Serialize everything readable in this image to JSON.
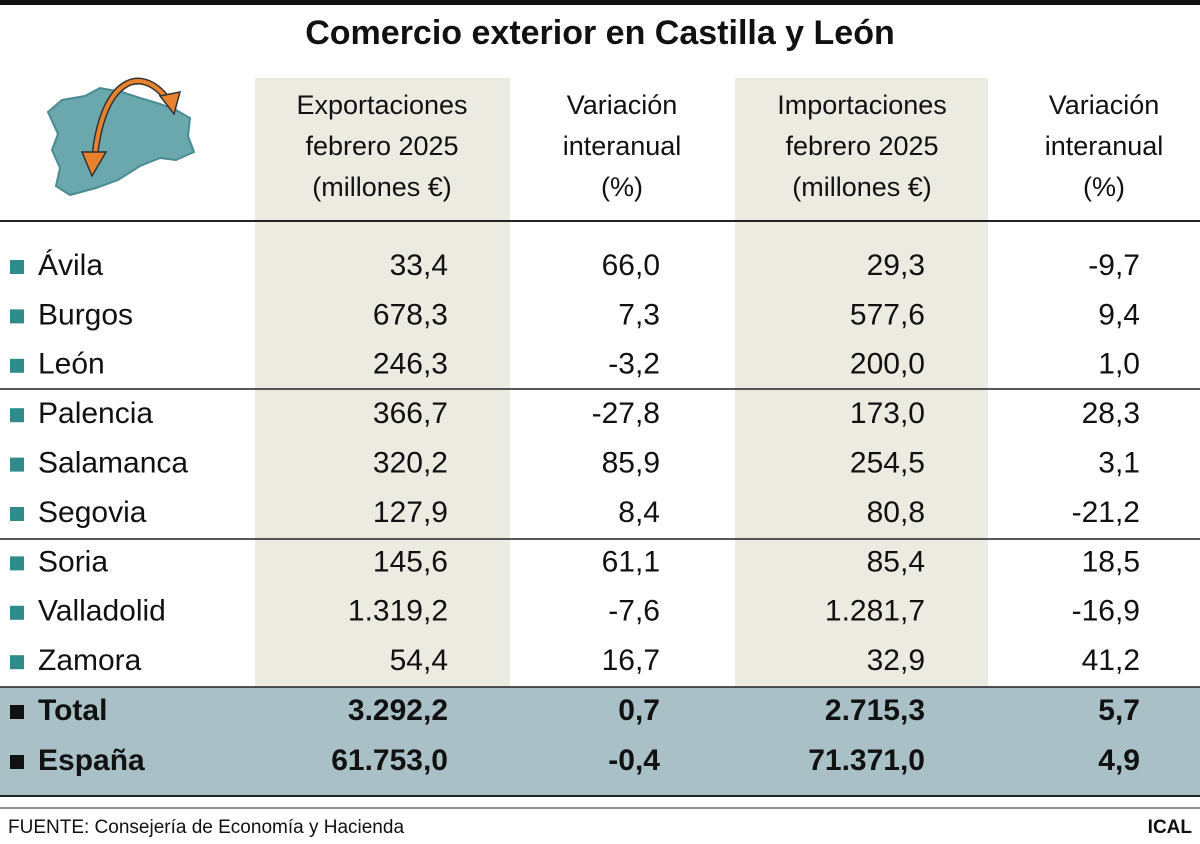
{
  "title": "Comercio exterior en Castilla y León",
  "header": [
    [
      "Exportaciones",
      "febrero 2025",
      "(millones €)"
    ],
    [
      "Variación",
      "interanual",
      "(%)"
    ],
    [
      "Importaciones",
      "febrero 2025",
      "(millones €)"
    ],
    [
      "Variación",
      "interanual",
      "(%)"
    ]
  ],
  "rows": [
    [
      "Ávila",
      "33,4",
      "66,0",
      "29,3",
      "-9,7"
    ],
    [
      "Burgos",
      "678,3",
      "7,3",
      "577,6",
      "9,4"
    ],
    [
      "León",
      "246,3",
      "-3,2",
      "200,0",
      "1,0"
    ],
    [
      "Palencia",
      "366,7",
      "-27,8",
      "173,0",
      "28,3"
    ],
    [
      "Salamanca",
      "320,2",
      "85,9",
      "254,5",
      "3,1"
    ],
    [
      "Segovia",
      "127,9",
      "8,4",
      "80,8",
      "-21,2"
    ],
    [
      "Soria",
      "145,6",
      "61,1",
      "85,4",
      "18,5"
    ],
    [
      "Valladolid",
      "1.319,2",
      "-7,6",
      "1.281,7",
      "-16,9"
    ],
    [
      "Zamora",
      "54,4",
      "16,7",
      "32,9",
      "41,2"
    ]
  ],
  "totals": [
    [
      "Total",
      "3.292,2",
      "0,7",
      "2.715,3",
      "5,7"
    ],
    [
      "España",
      "61.753,0",
      "-0,4",
      "71.371,0",
      "4,9"
    ]
  ],
  "source": "FUENTE: Consejería de Economía y Hacienda",
  "credit": "ICAL"
}
